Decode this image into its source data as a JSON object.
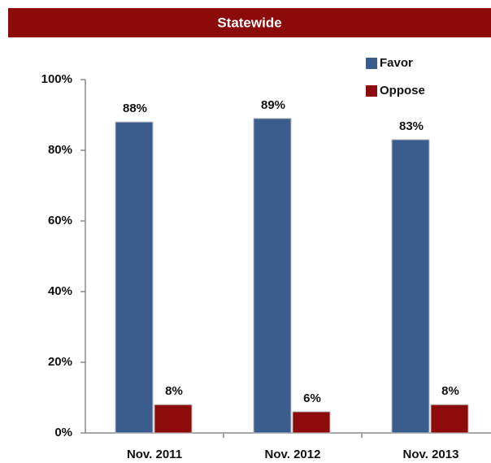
{
  "chart_data": {
    "type": "bar",
    "title": "Statewide",
    "categories": [
      "Nov. 2011",
      "Nov. 2012",
      "Nov. 2013"
    ],
    "series": [
      {
        "name": "Favor",
        "color": "#3b5d8d",
        "values": [
          88,
          89,
          83
        ],
        "value_labels": [
          "88%",
          "89%",
          "83%"
        ]
      },
      {
        "name": "Oppose",
        "color": "#8e0b0b",
        "values": [
          8,
          6,
          8
        ],
        "value_labels": [
          "8%",
          "6%",
          "8%"
        ]
      }
    ],
    "ylim": [
      0,
      100
    ],
    "yticks": [
      {
        "value": 0,
        "label": "0%"
      },
      {
        "value": 20,
        "label": "20%"
      },
      {
        "value": 40,
        "label": "40%"
      },
      {
        "value": 60,
        "label": "60%"
      },
      {
        "value": 80,
        "label": "80%"
      },
      {
        "value": 100,
        "label": "100%"
      }
    ],
    "legend": "top-right"
  }
}
